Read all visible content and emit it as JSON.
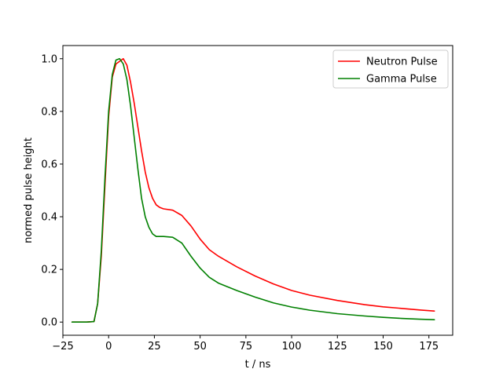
{
  "chart_data": {
    "type": "line",
    "title": "",
    "xlabel": "t / ns",
    "ylabel": "normed pulse height",
    "xlim": [
      -25,
      188
    ],
    "ylim": [
      -0.05,
      1.05
    ],
    "x_ticks": [
      -25,
      0,
      25,
      50,
      75,
      100,
      125,
      150,
      175
    ],
    "x_tick_labels": [
      "−25",
      "0",
      "25",
      "50",
      "75",
      "100",
      "125",
      "150",
      "175"
    ],
    "y_ticks": [
      0.0,
      0.2,
      0.4,
      0.6,
      0.8,
      1.0
    ],
    "y_tick_labels": [
      "0.0",
      "0.2",
      "0.4",
      "0.6",
      "0.8",
      "1.0"
    ],
    "grid": false,
    "legend": {
      "placement": "top-right"
    },
    "series": [
      {
        "name": "Neutron Pulse",
        "color": "#ff0000",
        "x": [
          -20,
          -12,
          -8,
          -6,
          -4,
          -2,
          0,
          2,
          4,
          6,
          8,
          10,
          12,
          14,
          16,
          18,
          20,
          22,
          24,
          26,
          28,
          30,
          35,
          40,
          45,
          50,
          55,
          60,
          65,
          70,
          80,
          90,
          100,
          110,
          125,
          140,
          150,
          160,
          170,
          178
        ],
        "y": [
          0.0,
          0.0,
          0.002,
          0.07,
          0.25,
          0.52,
          0.78,
          0.93,
          0.98,
          0.99,
          1.0,
          0.975,
          0.91,
          0.83,
          0.74,
          0.65,
          0.57,
          0.51,
          0.47,
          0.445,
          0.435,
          0.43,
          0.425,
          0.405,
          0.365,
          0.315,
          0.275,
          0.25,
          0.23,
          0.21,
          0.175,
          0.145,
          0.12,
          0.102,
          0.082,
          0.066,
          0.058,
          0.052,
          0.046,
          0.042
        ]
      },
      {
        "name": "Gamma Pulse",
        "color": "#008000",
        "x": [
          -20,
          -12,
          -8,
          -6,
          -4,
          -2,
          0,
          2,
          4,
          6,
          8,
          10,
          12,
          14,
          16,
          18,
          20,
          22,
          24,
          26,
          28,
          30,
          35,
          40,
          45,
          50,
          55,
          60,
          70,
          80,
          90,
          100,
          110,
          125,
          140,
          150,
          160,
          170,
          178
        ],
        "y": [
          0.0,
          0.0,
          0.002,
          0.07,
          0.27,
          0.55,
          0.8,
          0.94,
          0.995,
          1.0,
          0.98,
          0.92,
          0.82,
          0.7,
          0.58,
          0.47,
          0.4,
          0.36,
          0.335,
          0.325,
          0.325,
          0.325,
          0.322,
          0.3,
          0.25,
          0.205,
          0.17,
          0.148,
          0.12,
          0.095,
          0.073,
          0.057,
          0.045,
          0.032,
          0.023,
          0.018,
          0.014,
          0.011,
          0.009
        ]
      }
    ]
  }
}
